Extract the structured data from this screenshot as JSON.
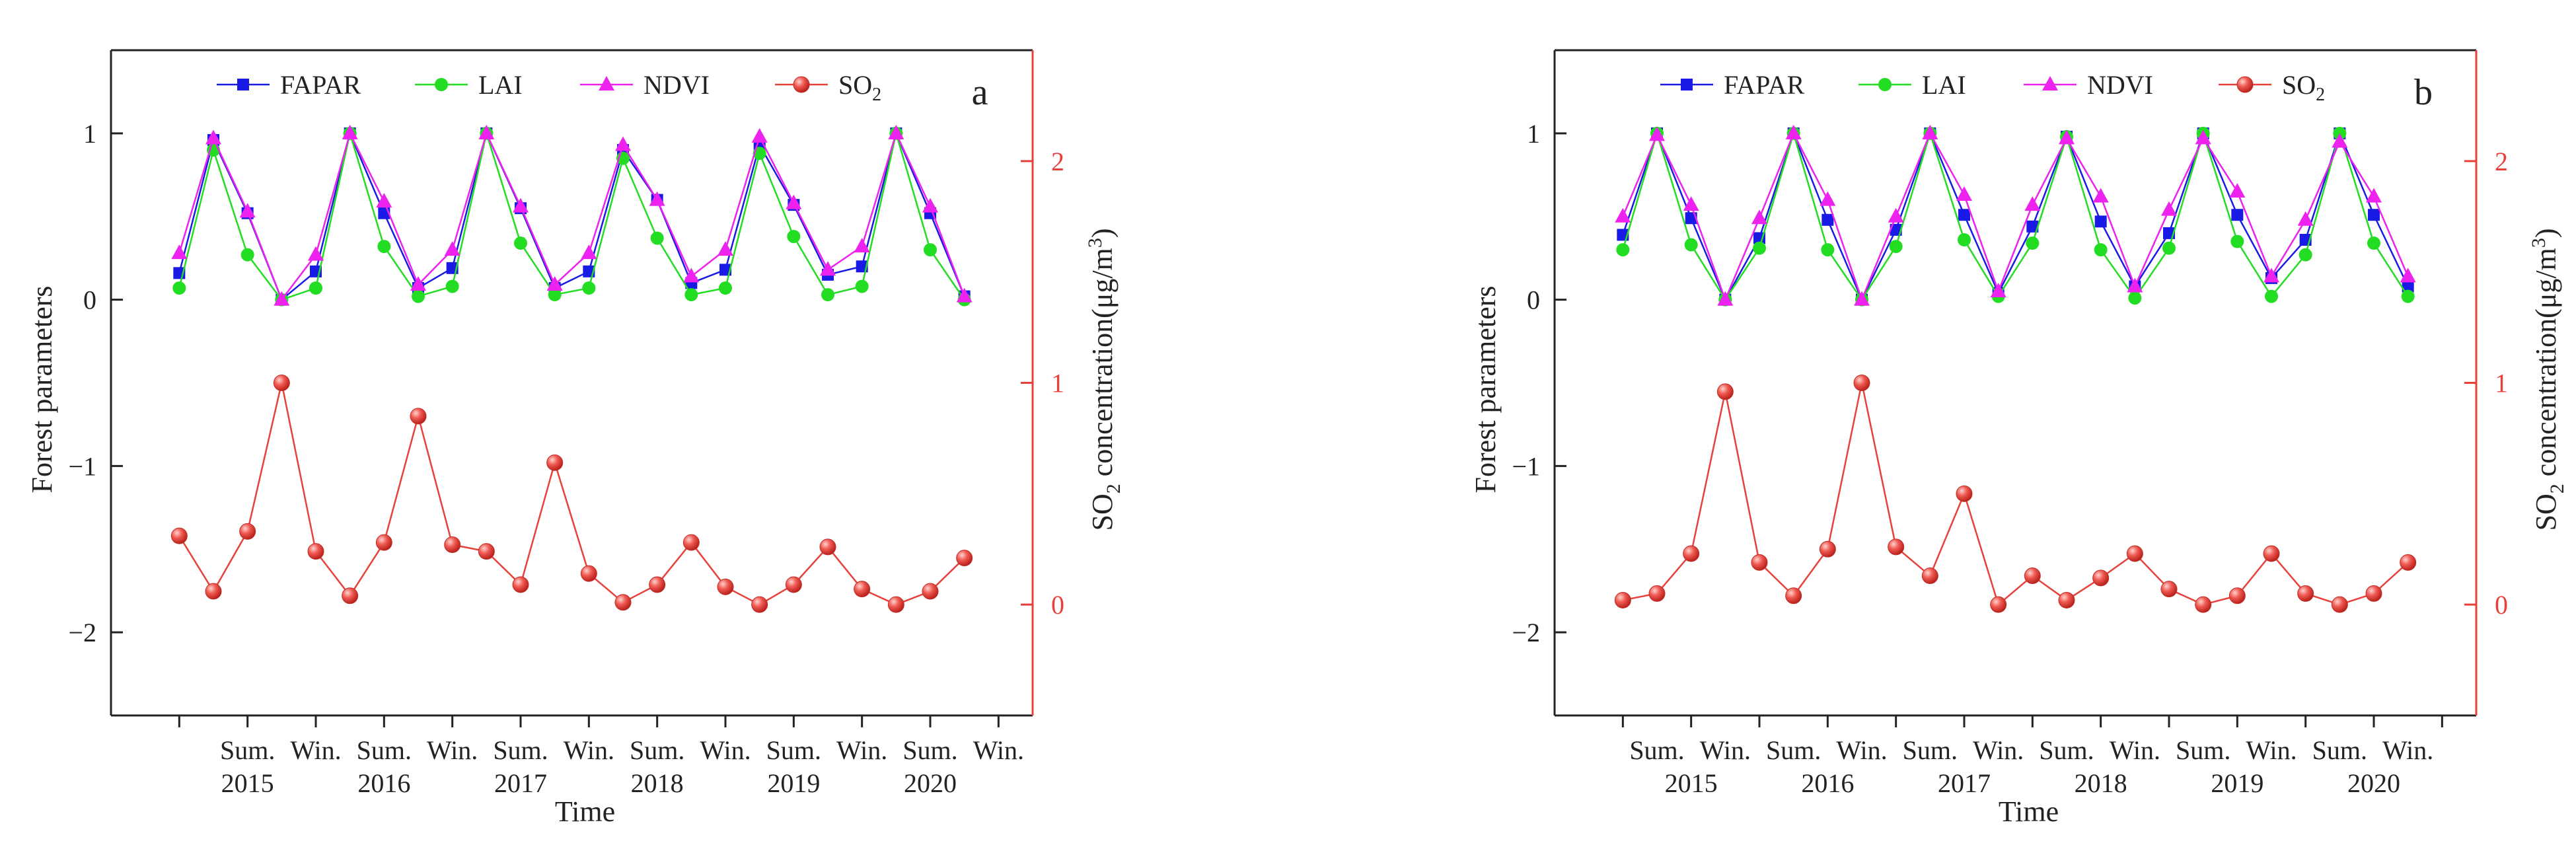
{
  "chart_data": [
    {
      "panel_label": "a",
      "type": "line",
      "xlabel": "Time",
      "ylabel_left": "Forest parameters",
      "ylabel_right": {
        "main": "SO",
        "sub": "2",
        "rest": " concentration(μg/m",
        "sup": "3",
        "close": ")"
      },
      "left_axis": {
        "ylim": [
          -2.5,
          1.5
        ],
        "ticks": [
          -2,
          -1,
          0,
          1
        ],
        "tick_labels": [
          "−2",
          "−1",
          "0",
          "1"
        ]
      },
      "right_axis": {
        "ylim": [
          -0.5,
          2.5
        ],
        "ticks": [
          0,
          1,
          2
        ],
        "tick_labels": [
          "0",
          "1",
          "2"
        ]
      },
      "xlim": [
        -0.5,
        13
      ],
      "x_ticks": [
        0.5,
        1.5,
        2.5,
        3.5,
        4.5,
        5.5,
        6.5,
        7.5,
        8.5,
        9.5,
        10.5,
        11.5,
        12.5
      ],
      "season_labels": [
        {
          "x": 1.5,
          "text": "Sum."
        },
        {
          "x": 2.5,
          "text": "Win."
        },
        {
          "x": 3.5,
          "text": "Sum."
        },
        {
          "x": 4.5,
          "text": "Win."
        },
        {
          "x": 5.5,
          "text": "Sum."
        },
        {
          "x": 6.5,
          "text": "Win."
        },
        {
          "x": 7.5,
          "text": "Sum."
        },
        {
          "x": 8.5,
          "text": "Win."
        },
        {
          "x": 9.5,
          "text": "Sum."
        },
        {
          "x": 10.5,
          "text": "Win."
        },
        {
          "x": 11.5,
          "text": "Sum."
        },
        {
          "x": 12.5,
          "text": "Win."
        }
      ],
      "year_labels": [
        {
          "x": 1.5,
          "text": "2015"
        },
        {
          "x": 3.5,
          "text": "2016"
        },
        {
          "x": 5.5,
          "text": "2017"
        },
        {
          "x": 7.5,
          "text": "2018"
        },
        {
          "x": 9.5,
          "text": "2019"
        },
        {
          "x": 11.5,
          "text": "2020"
        }
      ],
      "x": [
        0.5,
        1,
        1.5,
        2,
        2.5,
        3,
        3.5,
        4,
        4.5,
        5,
        5.5,
        6,
        6.5,
        7,
        7.5,
        8,
        8.5,
        9,
        9.5,
        10,
        10.5,
        11,
        11.5,
        12
      ],
      "series": [
        {
          "name": "FAPAR",
          "axis": "left",
          "color": "#1a1ae6",
          "marker": "square",
          "values": [
            0.16,
            0.96,
            0.52,
            0.0,
            0.17,
            1.0,
            0.52,
            0.07,
            0.19,
            1.0,
            0.55,
            0.07,
            0.17,
            0.9,
            0.6,
            0.1,
            0.18,
            0.93,
            0.57,
            0.15,
            0.2,
            1.0,
            0.52,
            0.02
          ]
        },
        {
          "name": "LAI",
          "axis": "left",
          "color": "#22dd22",
          "marker": "circle",
          "values": [
            0.07,
            0.9,
            0.27,
            0.0,
            0.07,
            1.0,
            0.32,
            0.02,
            0.08,
            1.0,
            0.34,
            0.03,
            0.07,
            0.85,
            0.37,
            0.03,
            0.07,
            0.88,
            0.38,
            0.03,
            0.08,
            1.0,
            0.3,
            0.0
          ]
        },
        {
          "name": "NDVI",
          "axis": "left",
          "color": "#ee22ee",
          "marker": "triangle",
          "values": [
            0.28,
            0.97,
            0.53,
            0.0,
            0.27,
            1.0,
            0.59,
            0.09,
            0.3,
            1.0,
            0.56,
            0.09,
            0.28,
            0.93,
            0.6,
            0.14,
            0.3,
            0.98,
            0.58,
            0.18,
            0.32,
            1.0,
            0.56,
            0.02
          ]
        },
        {
          "name": "SO",
          "name_sub": "2",
          "axis": "right",
          "color": "#e8413b",
          "marker": "sphere",
          "values": [
            0.31,
            0.06,
            0.33,
            1.0,
            0.24,
            0.04,
            0.28,
            0.85,
            0.27,
            0.24,
            0.09,
            0.64,
            0.14,
            0.01,
            0.09,
            0.28,
            0.08,
            0.0,
            0.09,
            0.26,
            0.07,
            0.0,
            0.06,
            0.21
          ]
        }
      ]
    },
    {
      "panel_label": "b",
      "type": "line",
      "xlabel": "Time",
      "ylabel_left": "Forest parameters",
      "ylabel_right": {
        "main": "SO",
        "sub": "2",
        "rest": " concentration(μg/m",
        "sup": "3",
        "close": ")"
      },
      "left_axis": {
        "ylim": [
          -2.5,
          1.5
        ],
        "ticks": [
          -2,
          -1,
          0,
          1
        ],
        "tick_labels": [
          "−2",
          "−1",
          "0",
          "1"
        ]
      },
      "right_axis": {
        "ylim": [
          -0.5,
          2.5
        ],
        "ticks": [
          0,
          1,
          2
        ],
        "tick_labels": [
          "0",
          "1",
          "2"
        ]
      },
      "xlim": [
        -0.5,
        13
      ],
      "x_ticks": [
        0.5,
        1.5,
        2.5,
        3.5,
        4.5,
        5.5,
        6.5,
        7.5,
        8.5,
        9.5,
        10.5,
        11.5,
        12.5
      ],
      "season_labels": [
        {
          "x": 1,
          "text": "Sum."
        },
        {
          "x": 2,
          "text": "Win."
        },
        {
          "x": 3,
          "text": "Sum."
        },
        {
          "x": 4,
          "text": "Win."
        },
        {
          "x": 5,
          "text": "Sum."
        },
        {
          "x": 6,
          "text": "Win."
        },
        {
          "x": 7,
          "text": "Sum."
        },
        {
          "x": 8,
          "text": "Win."
        },
        {
          "x": 9,
          "text": "Sum."
        },
        {
          "x": 10,
          "text": "Win."
        },
        {
          "x": 11,
          "text": "Sum."
        },
        {
          "x": 12,
          "text": "Win."
        }
      ],
      "year_labels": [
        {
          "x": 1.5,
          "text": "2015"
        },
        {
          "x": 3.5,
          "text": "2016"
        },
        {
          "x": 5.5,
          "text": "2017"
        },
        {
          "x": 7.5,
          "text": "2018"
        },
        {
          "x": 9.5,
          "text": "2019"
        },
        {
          "x": 11.5,
          "text": "2020"
        }
      ],
      "x": [
        0.5,
        1,
        1.5,
        2,
        2.5,
        3,
        3.5,
        4,
        4.5,
        5,
        5.5,
        6,
        6.5,
        7,
        7.5,
        8,
        8.5,
        9,
        9.5,
        10,
        10.5,
        11,
        11.5,
        12
      ],
      "series": [
        {
          "name": "FAPAR",
          "axis": "left",
          "color": "#1a1ae6",
          "marker": "square",
          "values": [
            0.39,
            1.0,
            0.49,
            0.0,
            0.37,
            1.0,
            0.48,
            0.0,
            0.42,
            1.0,
            0.51,
            0.04,
            0.44,
            0.98,
            0.47,
            0.08,
            0.4,
            1.0,
            0.51,
            0.13,
            0.36,
            1.0,
            0.51,
            0.08
          ]
        },
        {
          "name": "LAI",
          "axis": "left",
          "color": "#22dd22",
          "marker": "circle",
          "values": [
            0.3,
            1.0,
            0.33,
            0.0,
            0.31,
            1.0,
            0.3,
            0.0,
            0.32,
            1.0,
            0.36,
            0.02,
            0.34,
            0.98,
            0.3,
            0.01,
            0.31,
            1.0,
            0.35,
            0.02,
            0.27,
            1.0,
            0.34,
            0.02
          ]
        },
        {
          "name": "NDVI",
          "axis": "left",
          "color": "#ee22ee",
          "marker": "triangle",
          "values": [
            0.5,
            0.99,
            0.57,
            0.0,
            0.49,
            1.0,
            0.6,
            0.0,
            0.5,
            1.0,
            0.63,
            0.05,
            0.57,
            0.97,
            0.62,
            0.08,
            0.54,
            0.97,
            0.65,
            0.14,
            0.48,
            0.95,
            0.62,
            0.14
          ]
        },
        {
          "name": "SO",
          "name_sub": "2",
          "axis": "right",
          "color": "#e8413b",
          "marker": "sphere",
          "values": [
            0.02,
            0.05,
            0.23,
            0.96,
            0.19,
            0.04,
            0.25,
            1.0,
            0.26,
            0.13,
            0.5,
            0.0,
            0.13,
            0.02,
            0.12,
            0.23,
            0.07,
            0.0,
            0.04,
            0.23,
            0.05,
            0.0,
            0.05,
            0.19
          ]
        }
      ]
    }
  ]
}
